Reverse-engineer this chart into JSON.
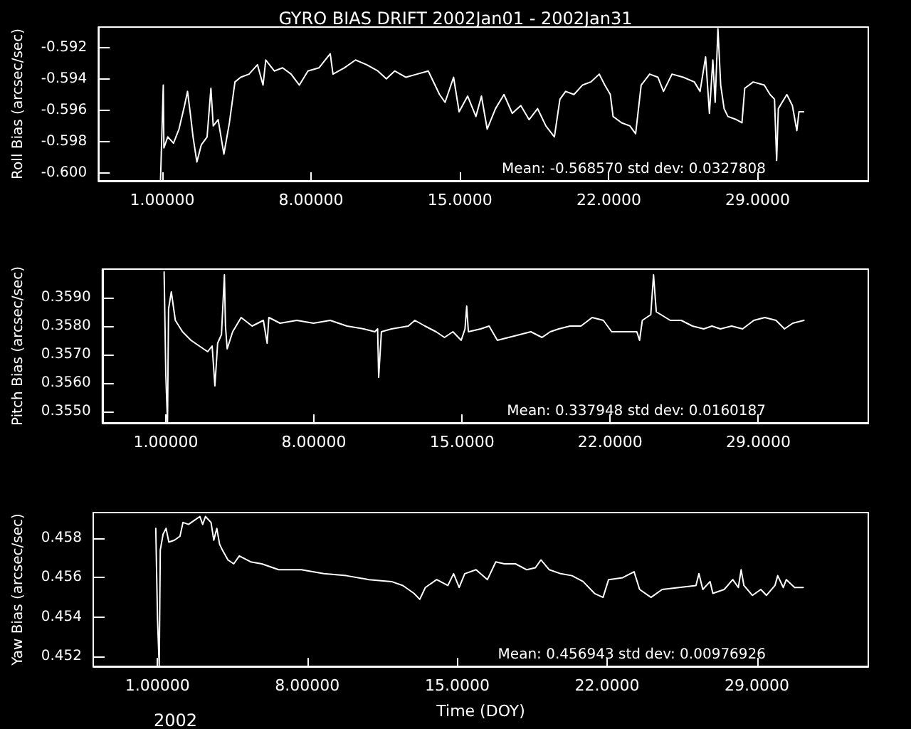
{
  "chart_data": [
    {
      "type": "line",
      "title": "GYRO BIAS DRIFT 2002Jan01 - 2002Jan31",
      "ylabel": "Roll Bias (arcsec/sec)",
      "color": "#ffffff",
      "annotations": [
        "Mean: -0.568570 std dev: 0.0327808"
      ],
      "xlim": [
        -2,
        34.2
      ],
      "xticks": [
        {
          "value": 1,
          "label": "1.00000"
        },
        {
          "value": 8,
          "label": "8.00000"
        },
        {
          "value": 15,
          "label": "15.0000"
        },
        {
          "value": 22,
          "label": "22.0000"
        },
        {
          "value": 29,
          "label": "29.0000"
        }
      ],
      "ylim": [
        -0.6005,
        -0.5907
      ],
      "yticks": [
        {
          "value": -0.6,
          "label": "-0.600"
        },
        -0.598,
        -0.596,
        -0.594,
        -0.592
      ],
      "x": [
        0.92,
        1.05,
        1.08,
        1.26,
        1.53,
        1.79,
        2.05,
        2.19,
        2.32,
        2.45,
        2.63,
        2.84,
        3.11,
        3.29,
        3.4,
        3.63,
        3.9,
        4.16,
        4.42,
        4.69,
        5.08,
        5.48,
        5.74,
        5.87,
        6.27,
        6.66,
        7.06,
        7.45,
        7.85,
        8.37,
        8.9,
        9.03,
        9.56,
        10.09,
        10.61,
        11.14,
        11.54,
        11.93,
        12.46,
        12.98,
        13.51,
        14.04,
        14.3,
        14.7,
        14.96,
        15.36,
        15.75,
        16.01,
        16.28,
        16.67,
        17.07,
        17.46,
        17.86,
        18.25,
        18.65,
        19.04,
        19.44,
        19.7,
        19.97,
        20.36,
        20.76,
        21.15,
        21.55,
        21.81,
        22.07,
        22.2,
        22.6,
        22.99,
        23.26,
        23.52,
        23.92,
        24.31,
        24.57,
        24.97,
        25.5,
        26.02,
        26.29,
        26.55,
        26.73,
        26.89,
        27.0,
        27.13,
        27.26,
        27.42,
        27.6,
        28.0,
        28.26,
        28.39,
        28.79,
        29.31,
        29.58,
        29.79,
        29.89,
        29.97,
        30.37,
        30.63,
        30.84,
        30.94,
        31.16
      ],
      "values": [
        -0.6005,
        -0.5944,
        -0.5984,
        -0.5977,
        -0.5981,
        -0.5972,
        -0.5957,
        -0.5948,
        -0.5962,
        -0.5977,
        -0.5993,
        -0.5982,
        -0.5977,
        -0.5946,
        -0.597,
        -0.5966,
        -0.5988,
        -0.5968,
        -0.5942,
        -0.5939,
        -0.5937,
        -0.5931,
        -0.5944,
        -0.5928,
        -0.5935,
        -0.5933,
        -0.5937,
        -0.5944,
        -0.5935,
        -0.5933,
        -0.5924,
        -0.5937,
        -0.5933,
        -0.5928,
        -0.5931,
        -0.5935,
        -0.594,
        -0.5935,
        -0.5939,
        -0.5937,
        -0.5935,
        -0.595,
        -0.5955,
        -0.5939,
        -0.5961,
        -0.5951,
        -0.5964,
        -0.5951,
        -0.5972,
        -0.5959,
        -0.595,
        -0.5962,
        -0.5957,
        -0.5966,
        -0.5959,
        -0.597,
        -0.5977,
        -0.5953,
        -0.5948,
        -0.595,
        -0.5944,
        -0.5942,
        -0.5937,
        -0.5944,
        -0.595,
        -0.5964,
        -0.5968,
        -0.597,
        -0.5975,
        -0.5944,
        -0.5937,
        -0.5939,
        -0.5948,
        -0.5937,
        -0.5939,
        -0.5942,
        -0.5948,
        -0.5926,
        -0.5962,
        -0.5928,
        -0.5955,
        -0.5908,
        -0.5944,
        -0.5959,
        -0.5964,
        -0.5966,
        -0.5968,
        -0.5946,
        -0.5942,
        -0.5944,
        -0.595,
        -0.5953,
        -0.5992,
        -0.5959,
        -0.595,
        -0.5957,
        -0.5973,
        -0.5961,
        -0.5961
      ]
    },
    {
      "type": "line",
      "ylabel": "Pitch Bias (arcsec/sec)",
      "color": "#ffffff",
      "annotations": [
        "Mean: 0.337948 std dev: 0.0160187"
      ],
      "xlim": [
        -2,
        34.2
      ],
      "xticks": [
        {
          "value": 1,
          "label": "1.00000"
        },
        {
          "value": 8,
          "label": "8.00000"
        },
        {
          "value": 15,
          "label": "15.0000"
        },
        {
          "value": 22,
          "label": "22.0000"
        },
        {
          "value": 29,
          "label": "29.0000"
        }
      ],
      "ylim": [
        0.3546,
        0.36
      ],
      "yticks": [
        {
          "value": 0.355,
          "label": "0.3550"
        },
        {
          "value": 0.356,
          "label": "0.3560"
        },
        {
          "value": 0.357,
          "label": "0.3570"
        },
        {
          "value": 0.358,
          "label": "0.3580"
        },
        {
          "value": 0.359,
          "label": "0.3590"
        }
      ],
      "x": [
        0.92,
        1.0,
        1.08,
        1.13,
        1.26,
        1.45,
        1.79,
        2.19,
        2.58,
        2.98,
        3.19,
        3.32,
        3.45,
        3.63,
        3.77,
        3.82,
        3.9,
        4.16,
        4.56,
        5.08,
        5.61,
        5.79,
        5.87,
        6.4,
        7.19,
        7.98,
        8.77,
        9.56,
        10.35,
        10.88,
        11.01,
        11.06,
        11.19,
        11.67,
        12.46,
        12.77,
        13.25,
        13.77,
        14.17,
        14.57,
        14.96,
        15.14,
        15.22,
        15.3,
        15.88,
        16.28,
        16.67,
        17.2,
        17.73,
        18.25,
        18.78,
        19.17,
        19.57,
        20.1,
        20.62,
        21.15,
        21.68,
        22.07,
        22.73,
        23.26,
        23.39,
        23.52,
        23.92,
        24.05,
        24.18,
        24.84,
        25.36,
        25.89,
        26.42,
        26.81,
        27.21,
        27.74,
        28.26,
        28.79,
        29.31,
        29.84,
        30.24,
        30.63,
        31.16
      ],
      "values": [
        0.3599,
        0.3563,
        0.3546,
        0.3586,
        0.3592,
        0.3582,
        0.3578,
        0.3575,
        0.3573,
        0.3571,
        0.3573,
        0.3559,
        0.3574,
        0.3577,
        0.3598,
        0.358,
        0.3572,
        0.3578,
        0.3583,
        0.358,
        0.3582,
        0.3574,
        0.3583,
        0.3581,
        0.3582,
        0.3581,
        0.3582,
        0.358,
        0.3579,
        0.3578,
        0.3579,
        0.3562,
        0.3578,
        0.3579,
        0.358,
        0.3582,
        0.358,
        0.3578,
        0.3576,
        0.3578,
        0.3575,
        0.3579,
        0.3587,
        0.3578,
        0.3579,
        0.358,
        0.3575,
        0.3576,
        0.3577,
        0.3578,
        0.3576,
        0.3578,
        0.3579,
        0.358,
        0.358,
        0.3583,
        0.3582,
        0.3578,
        0.3578,
        0.3578,
        0.3575,
        0.3582,
        0.3584,
        0.3598,
        0.3585,
        0.3582,
        0.3582,
        0.358,
        0.3579,
        0.358,
        0.3579,
        0.358,
        0.3579,
        0.3582,
        0.3583,
        0.3582,
        0.3579,
        0.3581,
        0.3582
      ]
    },
    {
      "type": "line",
      "ylabel": "Yaw Bias (arcsec/sec)",
      "xlabel": "Time (DOY)",
      "color": "#ffffff",
      "annotations": [
        "Mean: 0.456943 std dev: 0.00976926",
        "2002"
      ],
      "xlim": [
        -2,
        34.2
      ],
      "xticks": [
        {
          "value": 1,
          "label": "1.00000"
        },
        {
          "value": 8,
          "label": "8.00000"
        },
        {
          "value": 15,
          "label": "15.0000"
        },
        {
          "value": 22,
          "label": "22.0000"
        },
        {
          "value": 29,
          "label": "29.0000"
        }
      ],
      "ylim": [
        0.4515,
        0.4593
      ],
      "yticks": [
        0.452,
        0.454,
        0.456,
        0.458
      ],
      "x": [
        0.92,
        1.0,
        1.08,
        1.13,
        1.26,
        1.4,
        1.53,
        1.79,
        2.05,
        2.19,
        2.45,
        2.71,
        2.98,
        3.11,
        3.24,
        3.5,
        3.63,
        3.77,
        3.9,
        4.03,
        4.29,
        4.56,
        4.82,
        5.35,
        5.87,
        6.66,
        7.72,
        8.77,
        9.82,
        10.88,
        11.93,
        12.46,
        12.72,
        12.98,
        13.25,
        13.51,
        14.04,
        14.56,
        14.83,
        15.09,
        15.35,
        15.88,
        16.41,
        16.8,
        17.2,
        17.72,
        18.25,
        18.65,
        18.91,
        19.3,
        19.83,
        20.36,
        20.88,
        21.41,
        21.81,
        22.07,
        22.73,
        23.26,
        23.52,
        24.05,
        24.57,
        25.36,
        26.15,
        26.29,
        26.47,
        26.81,
        26.94,
        27.47,
        27.87,
        28.13,
        28.26,
        28.39,
        28.79,
        29.18,
        29.44,
        29.84,
        29.97,
        30.23,
        30.37,
        30.76,
        31.16
      ],
      "values": [
        0.4585,
        0.4539,
        0.4515,
        0.4574,
        0.4582,
        0.4585,
        0.4578,
        0.4579,
        0.4581,
        0.4588,
        0.4587,
        0.4589,
        0.4591,
        0.4587,
        0.4591,
        0.4588,
        0.4579,
        0.4585,
        0.4577,
        0.4574,
        0.4569,
        0.4567,
        0.4571,
        0.4568,
        0.4567,
        0.4564,
        0.4564,
        0.4562,
        0.4561,
        0.4559,
        0.4558,
        0.4556,
        0.4554,
        0.4552,
        0.4549,
        0.4555,
        0.4559,
        0.4556,
        0.4562,
        0.4555,
        0.4562,
        0.4564,
        0.4559,
        0.4568,
        0.4567,
        0.4567,
        0.4564,
        0.4565,
        0.4569,
        0.4564,
        0.4562,
        0.4561,
        0.4558,
        0.4552,
        0.455,
        0.4559,
        0.456,
        0.4563,
        0.4554,
        0.455,
        0.4554,
        0.4555,
        0.4556,
        0.4562,
        0.4554,
        0.4558,
        0.4552,
        0.4554,
        0.4559,
        0.4555,
        0.4564,
        0.4556,
        0.4551,
        0.4554,
        0.4551,
        0.4556,
        0.4561,
        0.4555,
        0.4559,
        0.4555,
        0.4555
      ]
    }
  ]
}
